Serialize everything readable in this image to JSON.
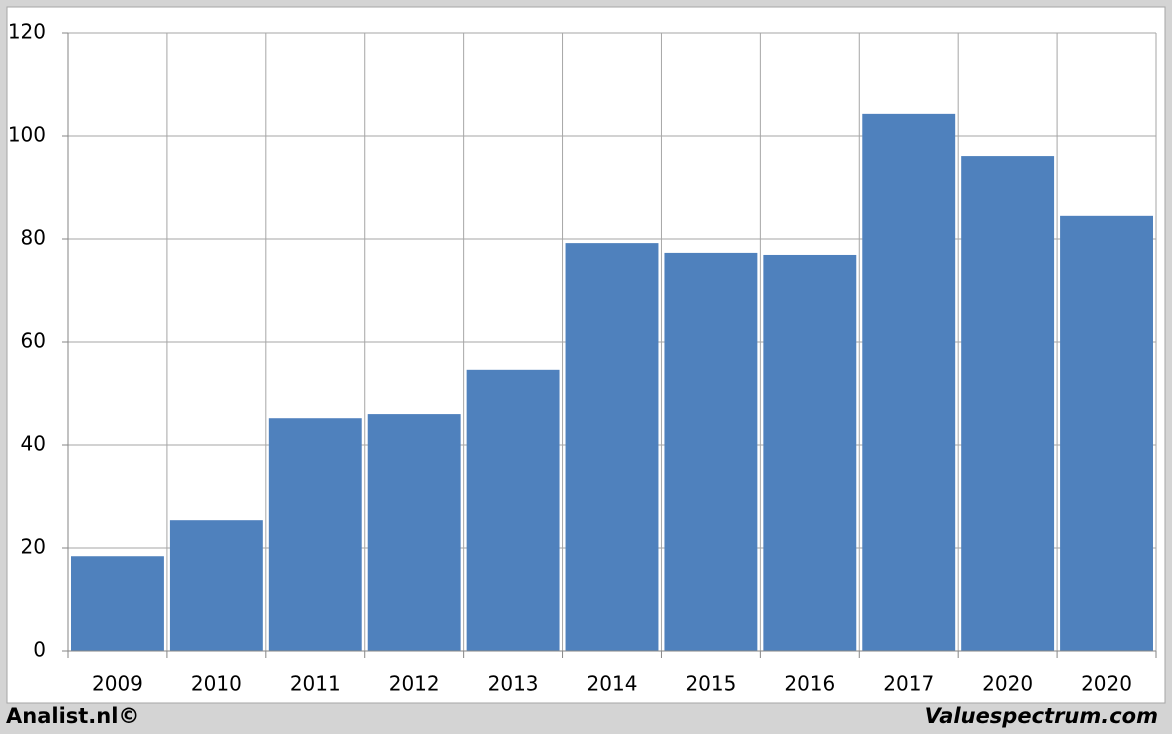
{
  "chart_data": {
    "type": "bar",
    "categories": [
      "2009",
      "2010",
      "2011",
      "2012",
      "2013",
      "2014",
      "2015",
      "2016",
      "2017",
      "2020",
      "2020"
    ],
    "values": [
      18.4,
      25.4,
      45.2,
      46.0,
      54.6,
      79.2,
      77.3,
      76.9,
      104.3,
      96.1,
      84.5
    ],
    "color": "#4f81bd",
    "ylim": [
      0,
      120
    ],
    "yticks": [
      0,
      20,
      40,
      60,
      80,
      100,
      120
    ],
    "grid": true
  },
  "footer": {
    "left": "Analist.nl©",
    "right": "Valuespectrum.com"
  }
}
